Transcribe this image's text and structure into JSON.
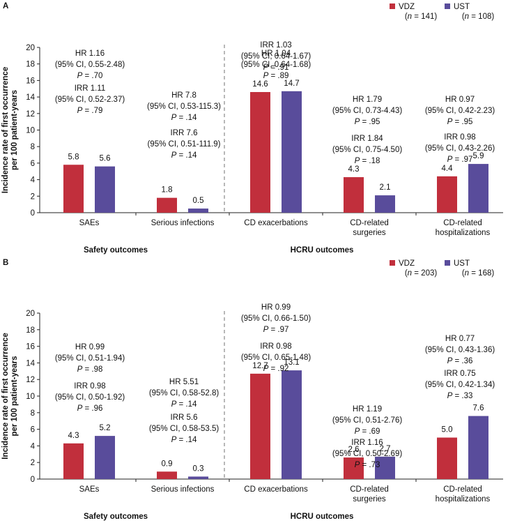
{
  "figure": {
    "colors": {
      "VDZ": "#c12f3c",
      "UST": "#594c9b",
      "divider": "#999999"
    }
  },
  "chart_data": [
    {
      "type": "bar",
      "panel_label": "A",
      "ylabel_lines": [
        "Incidence rate of first occurrence",
        "per 100 patient-years"
      ],
      "ylim": [
        0,
        20
      ],
      "yticks": [
        0,
        2,
        4,
        6,
        8,
        10,
        12,
        14,
        16,
        18,
        20
      ],
      "categories": [
        [
          "SAEs"
        ],
        [
          "Serious infections"
        ],
        [
          "CD exacerbations"
        ],
        [
          "CD-related",
          "surgeries"
        ],
        [
          "CD-related",
          "hospitalizations"
        ]
      ],
      "series": [
        {
          "name": "VDZ",
          "n_label": "(n = 141)",
          "values": [
            5.8,
            1.8,
            14.6,
            4.3,
            4.4
          ],
          "labels": [
            "5.8",
            "1.8",
            "14.6",
            "4.3",
            "4.4"
          ]
        },
        {
          "name": "UST",
          "n_label": "(n = 108)",
          "values": [
            5.6,
            0.5,
            14.7,
            2.1,
            5.9
          ],
          "labels": [
            "5.6",
            "0.5",
            "14.7",
            "2.1",
            "5.9"
          ]
        }
      ],
      "groups": [
        {
          "label": "Safety outcomes",
          "categories": [
            0,
            1
          ]
        },
        {
          "label": "HCRU outcomes",
          "categories": [
            2,
            3,
            4
          ]
        }
      ],
      "annotations": [
        {
          "category": 0,
          "hr": [
            "HR 1.16",
            "(95% CI, 0.55-2.48)",
            "P = .70"
          ],
          "irr": [
            "IRR 1.11",
            "(95% CI, 0.52-2.37)",
            "P = .79"
          ]
        },
        {
          "category": 1,
          "hr": [
            "HR 7.8",
            "(95% CI, 0.53-115.3)",
            "P = .14"
          ],
          "irr": [
            "IRR 7.6",
            "(95% CI, 0.51-111.9)",
            "P = .14"
          ]
        },
        {
          "category": 2,
          "hr": [
            "HR 1.04",
            "(95% CI, 0.64-1.68)",
            "P = .89"
          ],
          "irr": [
            "IRR 1.03",
            "(95% CI, 0.64-1.67)",
            "P = .91"
          ]
        },
        {
          "category": 3,
          "hr": [
            "HR 1.79",
            "(95% CI, 0.73-4.43)",
            "P = .95"
          ],
          "irr": [
            "IRR 1.84",
            "(95% CI, 0.75-4.50)",
            "P = .18"
          ]
        },
        {
          "category": 4,
          "hr": [
            "HR 0.97",
            "(95% CI, 0.42-2.23)",
            "P = .95"
          ],
          "irr": [
            "IRR 0.98",
            "(95% CI, 0.43-2.26)",
            "P = .97"
          ]
        }
      ]
    },
    {
      "type": "bar",
      "panel_label": "B",
      "ylabel_lines": [
        "Incidence rate of first occurrence",
        "per 100 patient-years"
      ],
      "ylim": [
        0,
        20
      ],
      "yticks": [
        0,
        2,
        4,
        6,
        8,
        10,
        12,
        14,
        16,
        18,
        20
      ],
      "categories": [
        [
          "SAEs"
        ],
        [
          "Serious infections"
        ],
        [
          "CD exacerbations"
        ],
        [
          "CD-related",
          "surgeries"
        ],
        [
          "CD-related",
          "hospitalizations"
        ]
      ],
      "series": [
        {
          "name": "VDZ",
          "n_label": "(n = 203)",
          "values": [
            4.3,
            0.9,
            12.7,
            2.6,
            5.0
          ],
          "labels": [
            "4.3",
            "0.9",
            "12.7",
            "2.6",
            "5.0"
          ]
        },
        {
          "name": "UST",
          "n_label": "(n = 168)",
          "values": [
            5.2,
            0.3,
            13.1,
            2.7,
            7.6
          ],
          "labels": [
            "5.2",
            "0.3",
            "13.1",
            "2.7",
            "7.6"
          ]
        }
      ],
      "groups": [
        {
          "label": "Safety outcomes",
          "categories": [
            0,
            1
          ]
        },
        {
          "label": "HCRU outcomes",
          "categories": [
            2,
            3,
            4
          ]
        }
      ],
      "annotations": [
        {
          "category": 0,
          "hr": [
            "HR 0.99",
            "(95% CI, 0.51-1.94)",
            "P = .98"
          ],
          "irr": [
            "IRR 0.98",
            "(95% CI, 0.50-1.92)",
            "P = .96"
          ]
        },
        {
          "category": 1,
          "hr": [
            "HR 5.51",
            "(95% CI, 0.58-52.8)",
            "P = .14"
          ],
          "irr": [
            "IRR 5.6",
            "(95% CI, 0.58-53.5)",
            "P = .14"
          ]
        },
        {
          "category": 2,
          "hr": [
            "HR 0.99",
            "(95% CI, 0.66-1.50)",
            "P = .97"
          ],
          "irr": [
            "IRR 0.98",
            "(95% CI, 0.65-1.48)",
            "P = .92"
          ]
        },
        {
          "category": 3,
          "hr": [
            "HR 1.19",
            "(95% CI, 0.51-2.76)",
            "P = .69"
          ],
          "irr": [
            "IRR 1.16",
            "(95% CI, 0.50-2.69)",
            "P = .73"
          ]
        },
        {
          "category": 4,
          "hr": [
            "HR 0.77",
            "(95% CI, 0.43-1.36)",
            "P = .36"
          ],
          "irr": [
            "IRR 0.75",
            "(95% CI, 0.42-1.34)",
            "P = .33"
          ]
        }
      ]
    }
  ]
}
